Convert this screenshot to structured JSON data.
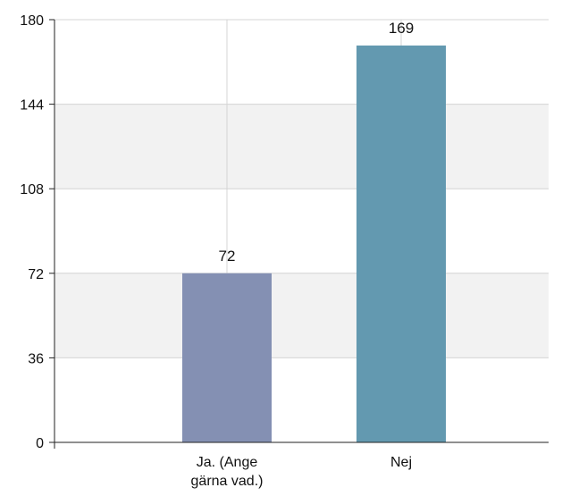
{
  "chart_data": {
    "type": "bar",
    "title": "",
    "xlabel": "",
    "ylabel": "",
    "categories": [
      [
        "Ja.  (Ange",
        "gärna vad.)"
      ],
      [
        "Nej"
      ]
    ],
    "values": [
      72,
      169
    ],
    "colors": [
      "#8490b3",
      "#6399b0"
    ],
    "ylim": [
      0,
      180
    ],
    "yticks": [
      "0",
      "36",
      "72",
      "108",
      "144",
      "180"
    ],
    "ytick_values": [
      0,
      36,
      72,
      108,
      144,
      180
    ],
    "grid": true,
    "band_fill": "#f2f2f2",
    "grid_color": "#d4d4d4"
  }
}
